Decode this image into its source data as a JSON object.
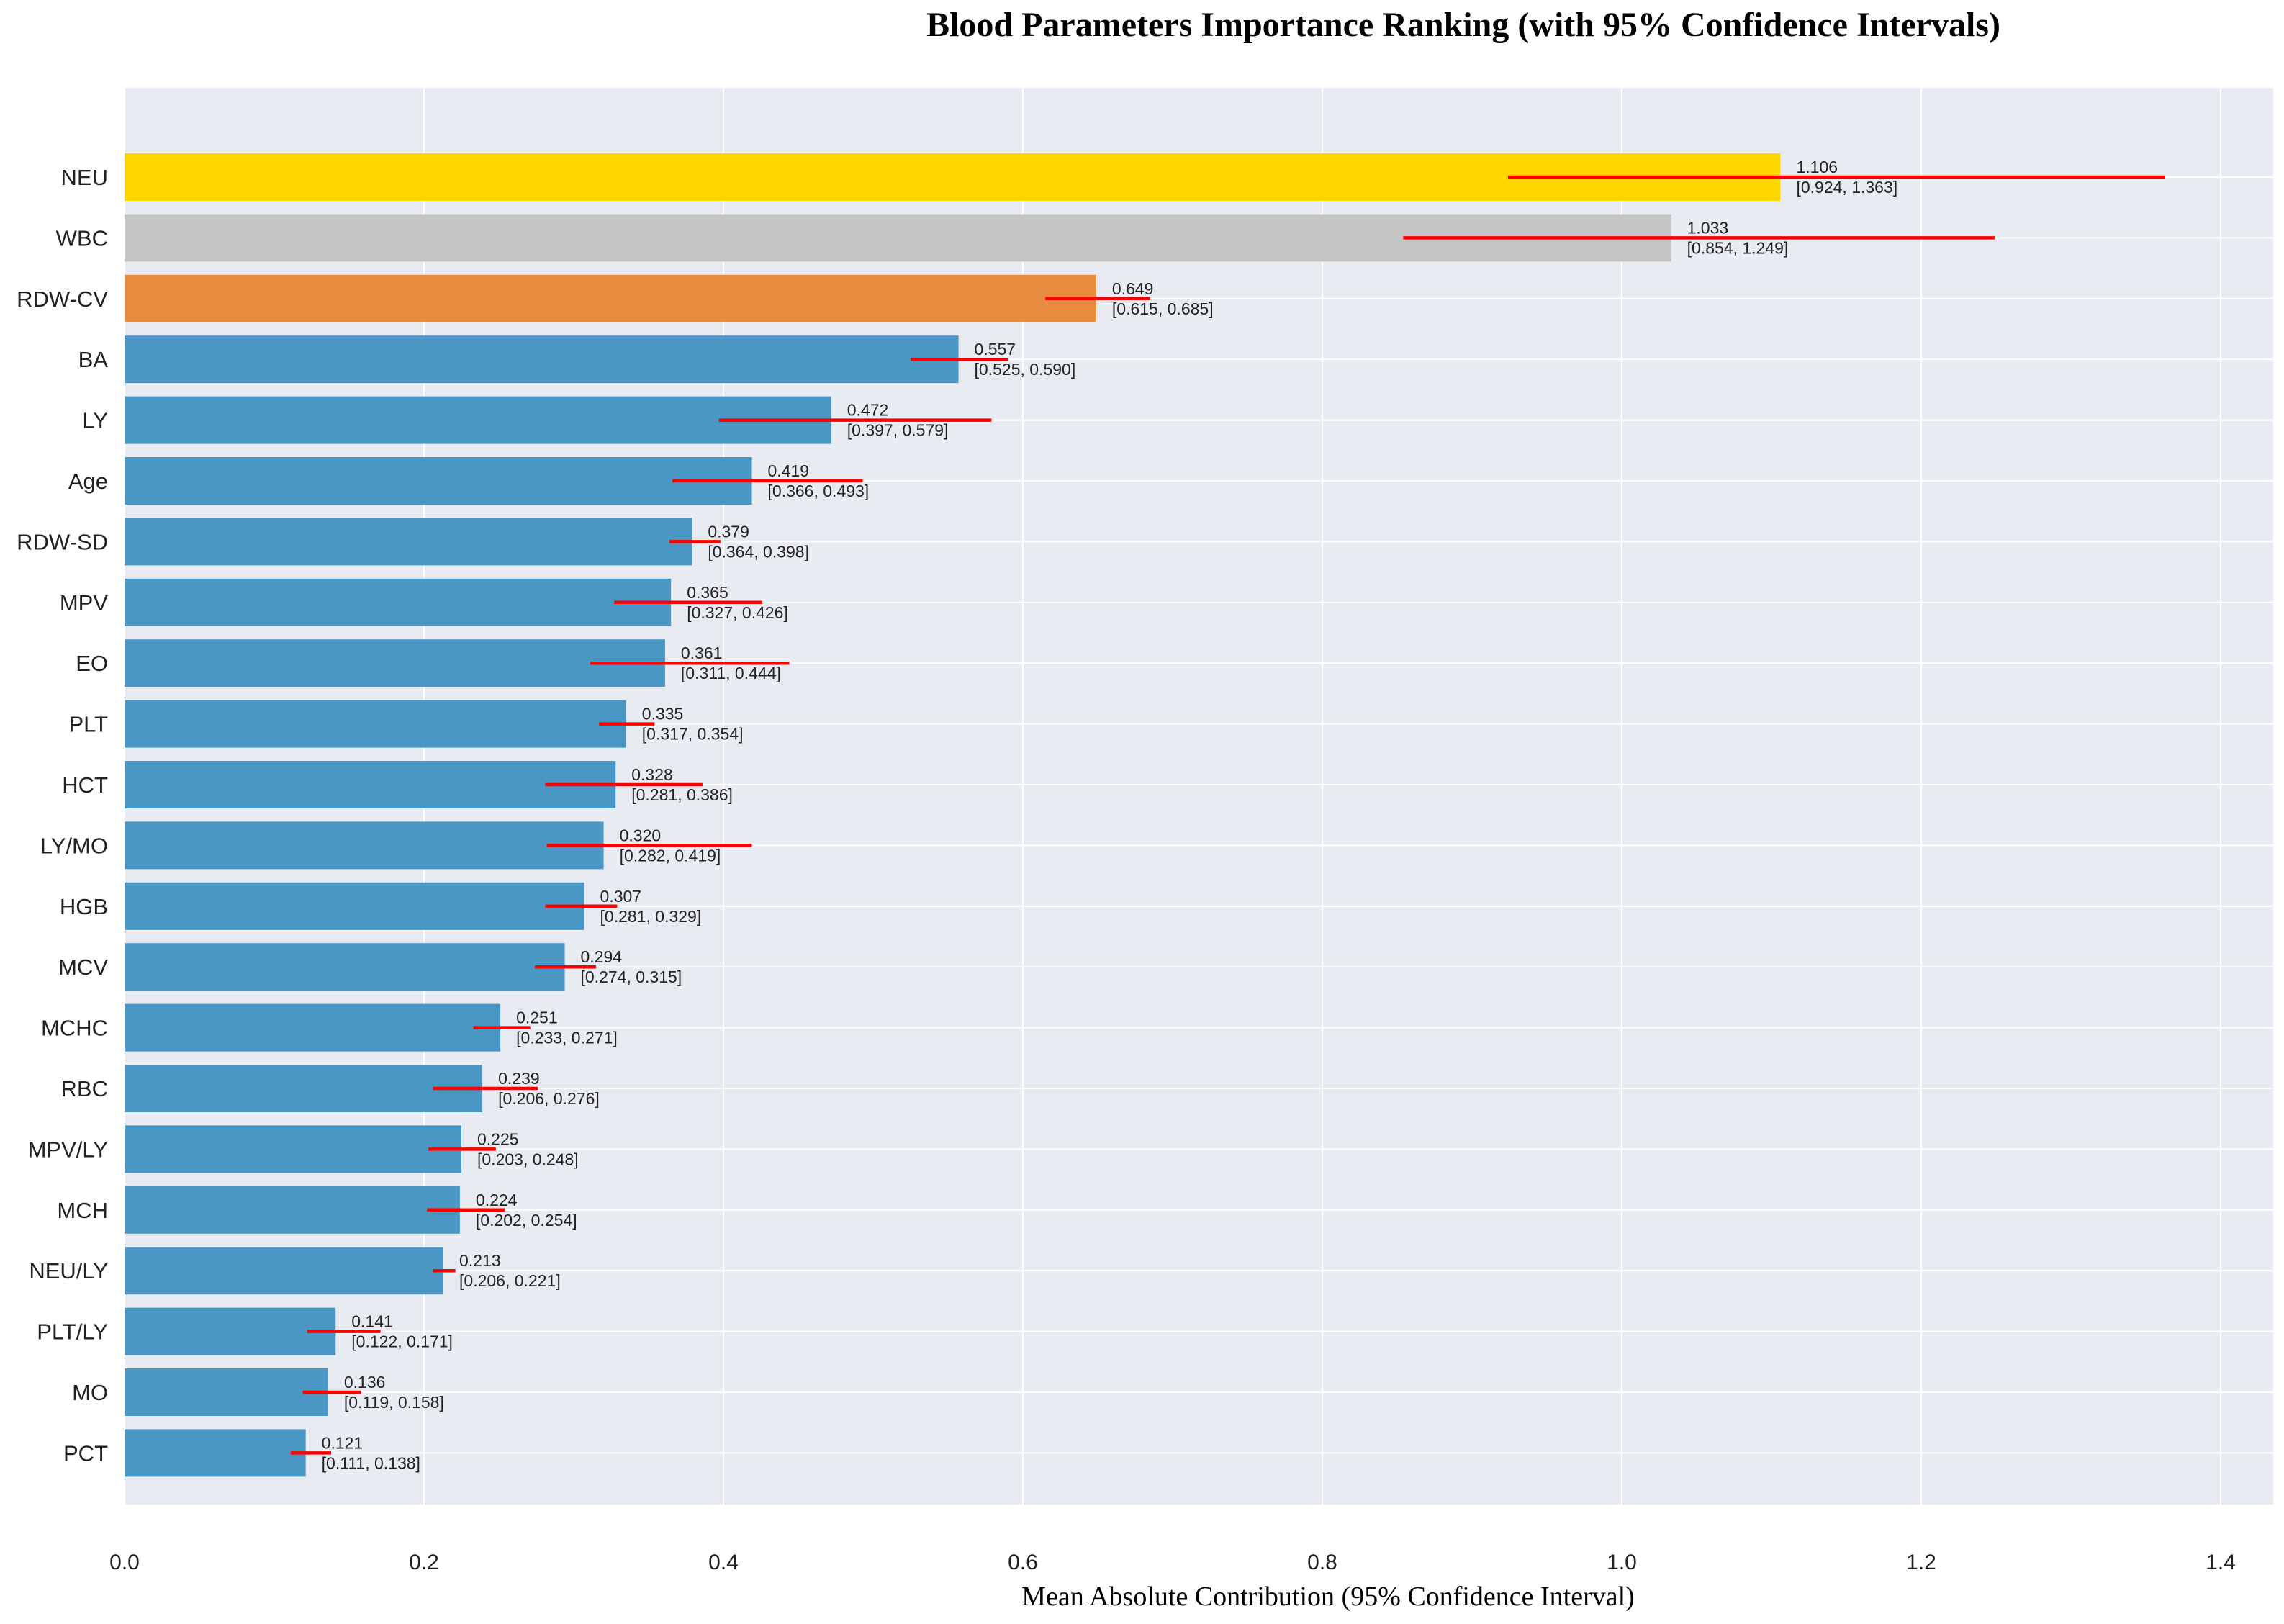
{
  "chart_data": {
    "type": "bar",
    "orientation": "horizontal",
    "title": "Blood Parameters Importance Ranking (with 95% Confidence Intervals)",
    "xlabel": "Mean Absolute Contribution (95% Confidence Interval)",
    "ylabel": "",
    "xlim": [
      0,
      1.43
    ],
    "xticks": [
      "0.0",
      "0.2",
      "0.4",
      "0.6",
      "0.8",
      "1.0",
      "1.2",
      "1.4"
    ],
    "grid": true,
    "colors": {
      "plot_background": "#e9ebf3",
      "grid": "#ffffff",
      "default_bar": "#4a97c5",
      "rank1_bar": "#ffd700",
      "rank2_bar": "#c4c4c4",
      "rank3_bar": "#e88b3e",
      "error_bar": "#ff0000"
    },
    "items": [
      {
        "label": "NEU",
        "value": 1.106,
        "ci_low": 0.924,
        "ci_high": 1.363,
        "value_text": "1.106",
        "ci_text": "[0.924, 1.363]"
      },
      {
        "label": "WBC",
        "value": 1.033,
        "ci_low": 0.854,
        "ci_high": 1.249,
        "value_text": "1.033",
        "ci_text": "[0.854, 1.249]"
      },
      {
        "label": "RDW-CV",
        "value": 0.649,
        "ci_low": 0.615,
        "ci_high": 0.685,
        "value_text": "0.649",
        "ci_text": "[0.615, 0.685]"
      },
      {
        "label": "BA",
        "value": 0.557,
        "ci_low": 0.525,
        "ci_high": 0.59,
        "value_text": "0.557",
        "ci_text": "[0.525, 0.590]"
      },
      {
        "label": "LY",
        "value": 0.472,
        "ci_low": 0.397,
        "ci_high": 0.579,
        "value_text": "0.472",
        "ci_text": "[0.397, 0.579]"
      },
      {
        "label": "Age",
        "value": 0.419,
        "ci_low": 0.366,
        "ci_high": 0.493,
        "value_text": "0.419",
        "ci_text": "[0.366, 0.493]"
      },
      {
        "label": "RDW-SD",
        "value": 0.379,
        "ci_low": 0.364,
        "ci_high": 0.398,
        "value_text": "0.379",
        "ci_text": "[0.364, 0.398]"
      },
      {
        "label": "MPV",
        "value": 0.365,
        "ci_low": 0.327,
        "ci_high": 0.426,
        "value_text": "0.365",
        "ci_text": "[0.327, 0.426]"
      },
      {
        "label": "EO",
        "value": 0.361,
        "ci_low": 0.311,
        "ci_high": 0.444,
        "value_text": "0.361",
        "ci_text": "[0.311, 0.444]"
      },
      {
        "label": "PLT",
        "value": 0.335,
        "ci_low": 0.317,
        "ci_high": 0.354,
        "value_text": "0.335",
        "ci_text": "[0.317, 0.354]"
      },
      {
        "label": "HCT",
        "value": 0.328,
        "ci_low": 0.281,
        "ci_high": 0.386,
        "value_text": "0.328",
        "ci_text": "[0.281, 0.386]"
      },
      {
        "label": "LY/MO",
        "value": 0.32,
        "ci_low": 0.282,
        "ci_high": 0.419,
        "value_text": "0.320",
        "ci_text": "[0.282, 0.419]"
      },
      {
        "label": "HGB",
        "value": 0.307,
        "ci_low": 0.281,
        "ci_high": 0.329,
        "value_text": "0.307",
        "ci_text": "[0.281, 0.329]"
      },
      {
        "label": "MCV",
        "value": 0.294,
        "ci_low": 0.274,
        "ci_high": 0.315,
        "value_text": "0.294",
        "ci_text": "[0.274, 0.315]"
      },
      {
        "label": "MCHC",
        "value": 0.251,
        "ci_low": 0.233,
        "ci_high": 0.271,
        "value_text": "0.251",
        "ci_text": "[0.233, 0.271]"
      },
      {
        "label": "RBC",
        "value": 0.239,
        "ci_low": 0.206,
        "ci_high": 0.276,
        "value_text": "0.239",
        "ci_text": "[0.206, 0.276]"
      },
      {
        "label": "MPV/LY",
        "value": 0.225,
        "ci_low": 0.203,
        "ci_high": 0.248,
        "value_text": "0.225",
        "ci_text": "[0.203, 0.248]"
      },
      {
        "label": "MCH",
        "value": 0.224,
        "ci_low": 0.202,
        "ci_high": 0.254,
        "value_text": "0.224",
        "ci_text": "[0.202, 0.254]"
      },
      {
        "label": "NEU/LY",
        "value": 0.213,
        "ci_low": 0.206,
        "ci_high": 0.221,
        "value_text": "0.213",
        "ci_text": "[0.206, 0.221]"
      },
      {
        "label": "PLT/LY",
        "value": 0.141,
        "ci_low": 0.122,
        "ci_high": 0.171,
        "value_text": "0.141",
        "ci_text": "[0.122, 0.171]"
      },
      {
        "label": "MO",
        "value": 0.136,
        "ci_low": 0.119,
        "ci_high": 0.158,
        "value_text": "0.136",
        "ci_text": "[0.119, 0.158]"
      },
      {
        "label": "PCT",
        "value": 0.121,
        "ci_low": 0.111,
        "ci_high": 0.138,
        "value_text": "0.121",
        "ci_text": "[0.111, 0.138]"
      }
    ]
  }
}
